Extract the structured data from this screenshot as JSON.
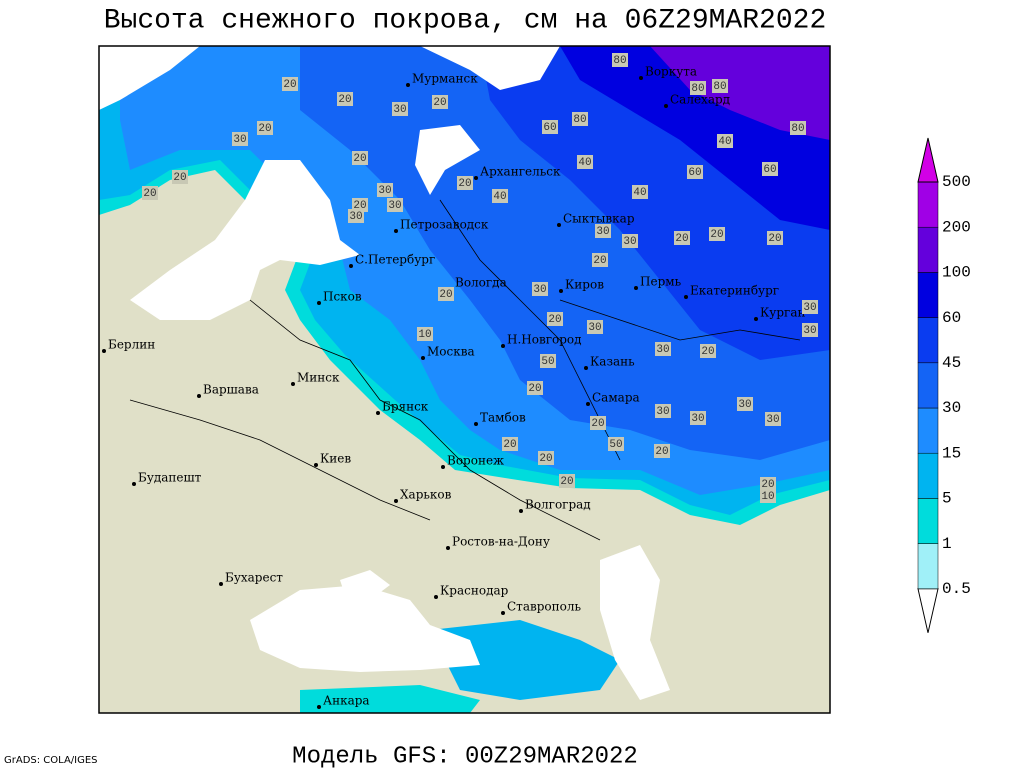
{
  "title": "Высота снежного покрова, см на 06Z29MAR2022",
  "subtitle": "Модель GFS: 00Z29MAR2022",
  "credit": "GrADS: COLA/IGES",
  "legend": {
    "levels": [
      0.5,
      1,
      5,
      15,
      30,
      45,
      60,
      100,
      200,
      500
    ],
    "colors": [
      "#ffffff",
      "#a0f0f8",
      "#00dcdc",
      "#00b4f0",
      "#1e8cff",
      "#1464f5",
      "#0a3cf0",
      "#0000e0",
      "#6400dc",
      "#a000e6",
      "#d200e6"
    ]
  },
  "cities": [
    "Мурманск",
    "Воркута",
    "Салехард",
    "Архангельск",
    "Петрозаводск",
    "С.Петербург",
    "Сыктывкар",
    "Псков",
    "Вологда",
    "Киров",
    "Пермь",
    "Екатеринбург",
    "Курган",
    "Берлин",
    "Н.Новгород",
    "Москва",
    "Казань",
    "Варшава",
    "Минск",
    "Самара",
    "Брянск",
    "Тамбов",
    "Воронеж",
    "Киев",
    "Будапешт",
    "Харьков",
    "Волгоград",
    "Ростов-на-Дону",
    "Бухарест",
    "Краснодар",
    "Ставрополь",
    "Анкара"
  ],
  "contour_labels": [
    20,
    20,
    30,
    20,
    20,
    30,
    20,
    20,
    20,
    30,
    20,
    30,
    30,
    20,
    40,
    40,
    60,
    80,
    80,
    80,
    80,
    40,
    60,
    60,
    40,
    80,
    30,
    20,
    20,
    20,
    30,
    20,
    30,
    20,
    10,
    20,
    30,
    50,
    20,
    30,
    20,
    30,
    20,
    50,
    20,
    30,
    30,
    30,
    30,
    30,
    20,
    20,
    20,
    10,
    20
  ]
}
